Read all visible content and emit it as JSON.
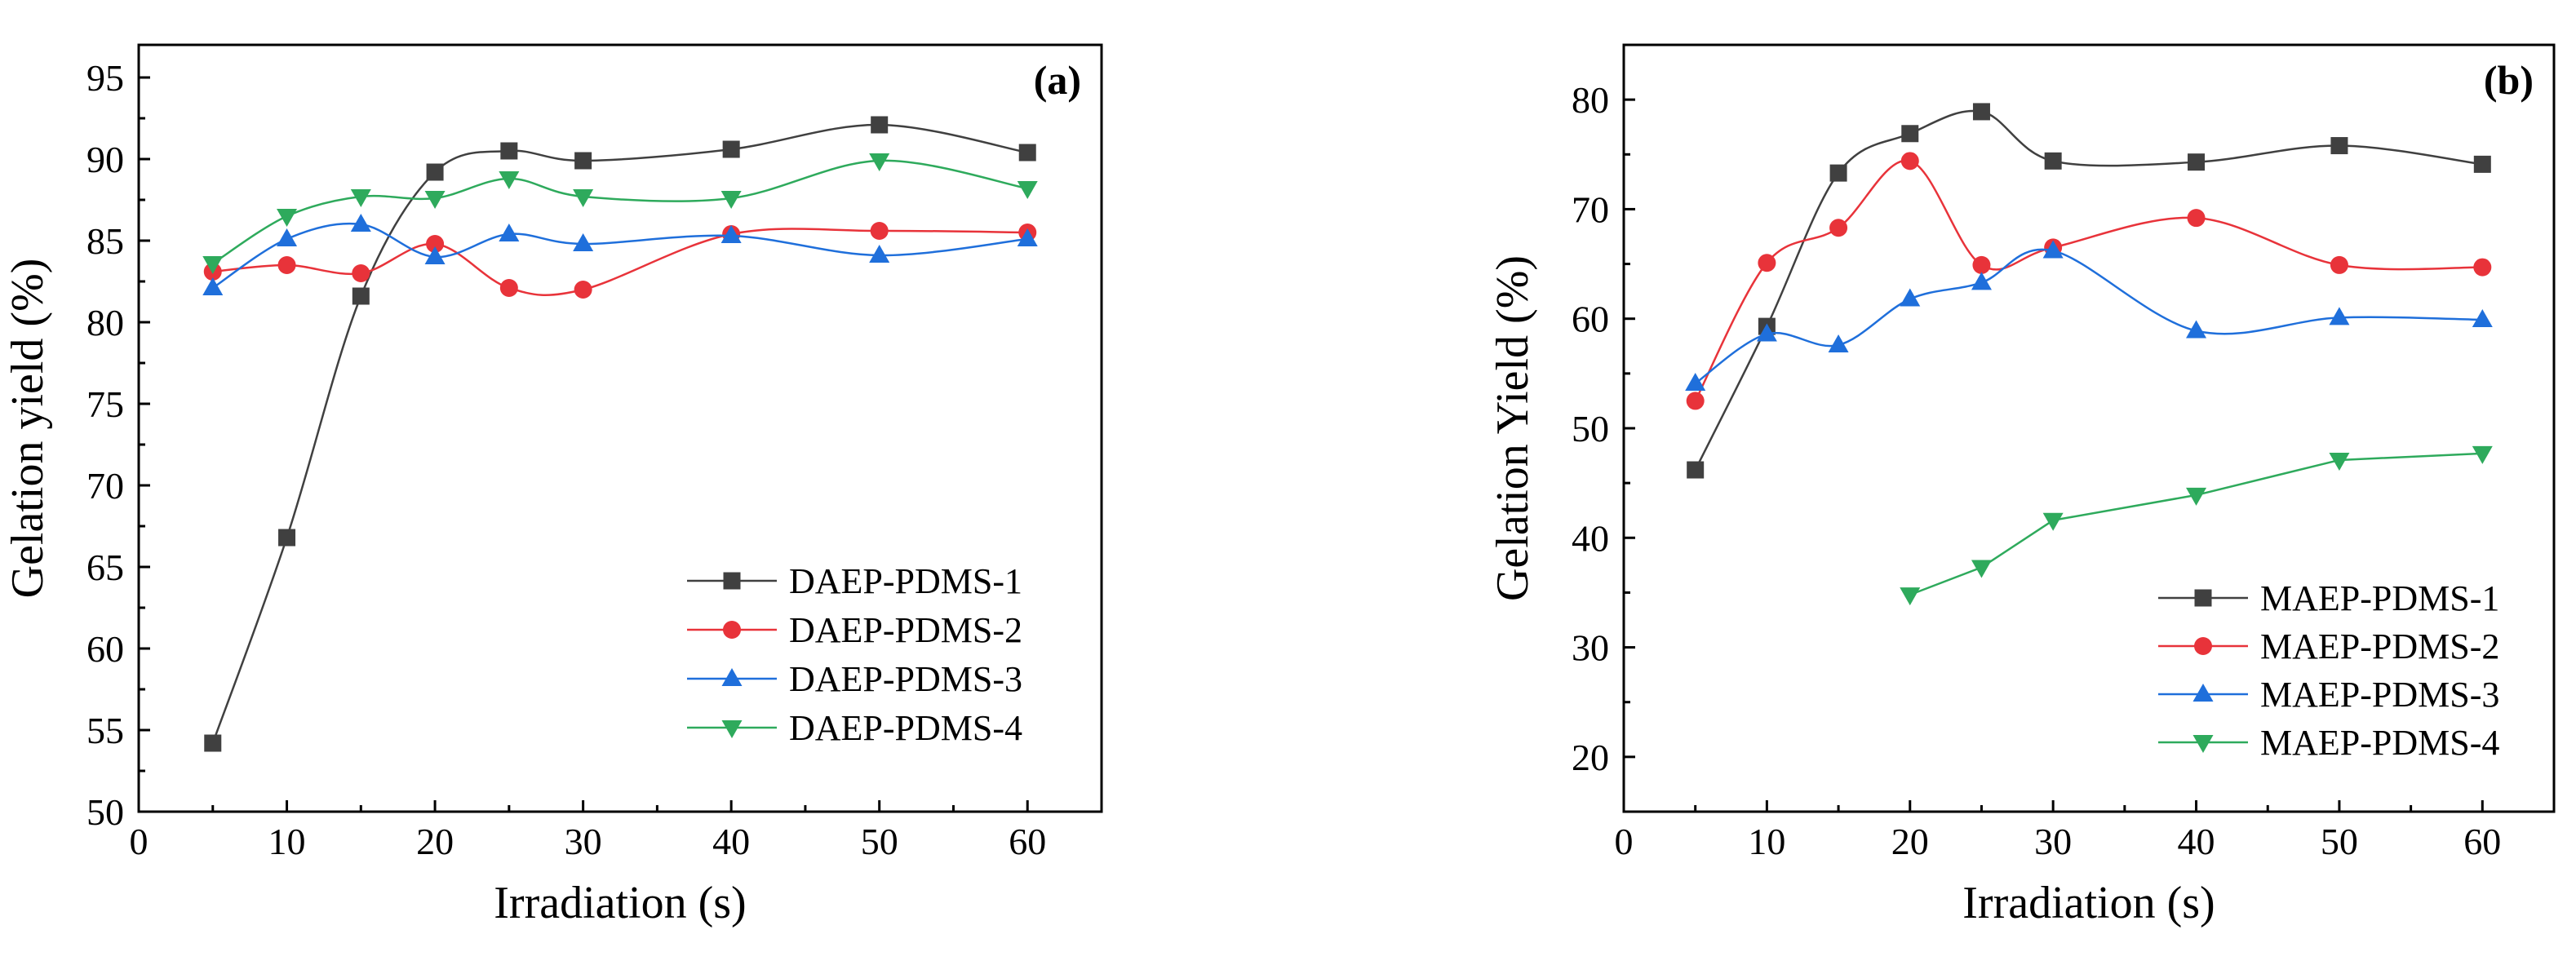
{
  "chart_data": [
    {
      "type": "line",
      "panel_label": "(a)",
      "title": "",
      "xlabel": "Irradiation (s)",
      "ylabel": "Gelation yield (%)",
      "xlim": [
        0,
        65
      ],
      "ylim": [
        50,
        97
      ],
      "xticks": [
        0,
        10,
        20,
        30,
        40,
        50,
        60
      ],
      "yticks": [
        50,
        55,
        60,
        65,
        70,
        75,
        80,
        85,
        90,
        95
      ],
      "grid": false,
      "legend_position": "bottom-right",
      "series": [
        {
          "name": "DAEP-PDMS-1",
          "color": "#404040",
          "marker": "square",
          "x": [
            5,
            10,
            15,
            20,
            25,
            30,
            40,
            50,
            60
          ],
          "y": [
            54.2,
            66.8,
            81.6,
            89.2,
            90.5,
            89.9,
            90.6,
            92.1,
            90.4
          ]
        },
        {
          "name": "DAEP-PDMS-2",
          "color": "#e8333a",
          "marker": "circle",
          "x": [
            5,
            10,
            15,
            20,
            25,
            30,
            40,
            50,
            60
          ],
          "y": [
            83.1,
            83.5,
            83.0,
            84.8,
            82.1,
            82.0,
            85.4,
            85.6,
            85.5
          ]
        },
        {
          "name": "DAEP-PDMS-3",
          "color": "#1f6fdb",
          "marker": "triangle-up",
          "x": [
            5,
            10,
            15,
            20,
            25,
            30,
            40,
            50,
            60
          ],
          "y": [
            82.1,
            85.1,
            86.0,
            84.0,
            85.4,
            84.8,
            85.3,
            84.1,
            85.1
          ]
        },
        {
          "name": "DAEP-PDMS-4",
          "color": "#2eaa5c",
          "marker": "triangle-down",
          "x": [
            5,
            10,
            15,
            20,
            25,
            30,
            40,
            50,
            60
          ],
          "y": [
            83.6,
            86.5,
            87.7,
            87.6,
            88.8,
            87.7,
            87.6,
            89.9,
            88.2
          ]
        }
      ]
    },
    {
      "type": "line",
      "panel_label": "(b)",
      "title": "",
      "xlabel": "Irradiation (s)",
      "ylabel": "Gelation Yield (%)",
      "xlim": [
        0,
        65
      ],
      "ylim": [
        15,
        85
      ],
      "xticks": [
        0,
        10,
        20,
        30,
        40,
        50,
        60
      ],
      "yticks": [
        20,
        30,
        40,
        50,
        60,
        70,
        80
      ],
      "grid": false,
      "legend_position": "bottom-right",
      "series": [
        {
          "name": "MAEP-PDMS-1",
          "color": "#404040",
          "marker": "square",
          "x": [
            5,
            10,
            15,
            20,
            25,
            30,
            40,
            50,
            60
          ],
          "y": [
            46.2,
            59.3,
            73.3,
            76.9,
            78.9,
            74.4,
            74.3,
            75.8,
            74.1
          ]
        },
        {
          "name": "MAEP-PDMS-2",
          "color": "#e8333a",
          "marker": "circle",
          "x": [
            5,
            10,
            15,
            20,
            25,
            30,
            40,
            50,
            60
          ],
          "y": [
            52.5,
            65.1,
            68.3,
            74.4,
            64.9,
            66.5,
            69.2,
            64.9,
            64.7
          ]
        },
        {
          "name": "MAEP-PDMS-3",
          "color": "#1f6fdb",
          "marker": "triangle-up",
          "x": [
            5,
            10,
            15,
            20,
            25,
            30,
            40,
            50,
            60
          ],
          "y": [
            54.1,
            58.6,
            57.6,
            61.8,
            63.3,
            66.2,
            58.9,
            60.1,
            59.9
          ]
        },
        {
          "name": "MAEP-PDMS-4",
          "color": "#2eaa5c",
          "marker": "triangle-down",
          "x": [
            20,
            25,
            30,
            40,
            50,
            60
          ],
          "y": [
            34.8,
            37.3,
            41.6,
            43.9,
            47.1,
            47.7
          ]
        }
      ]
    }
  ]
}
